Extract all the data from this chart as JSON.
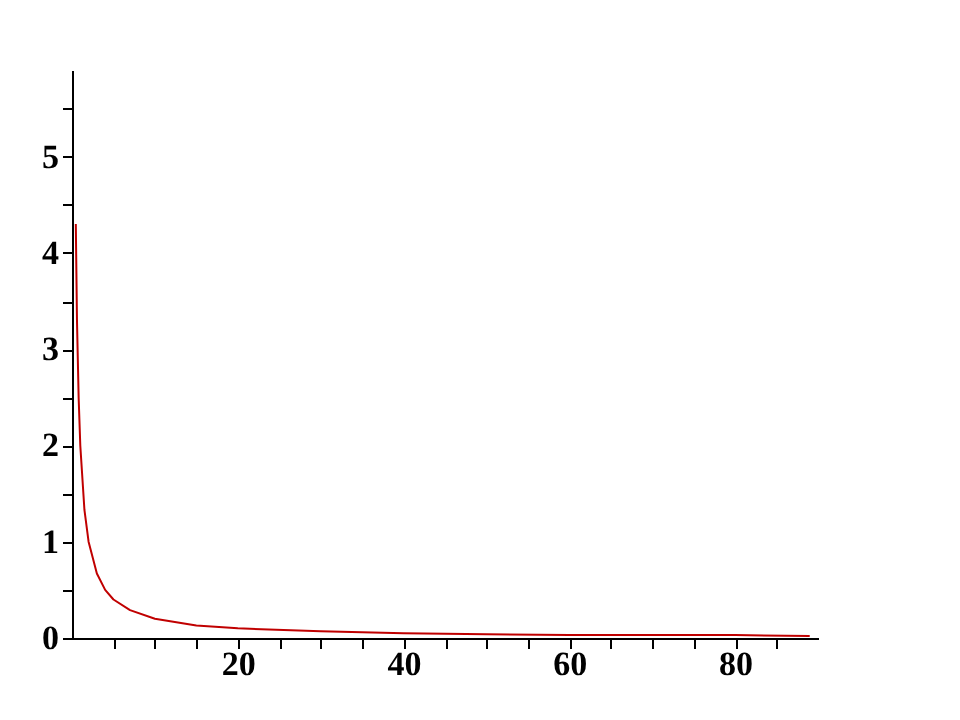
{
  "chart_data": {
    "type": "line",
    "x": [
      0.46,
      0.6,
      0.8,
      1,
      1.5,
      2,
      3,
      4,
      5,
      7,
      10,
      15,
      20,
      30,
      40,
      50,
      60,
      70,
      80,
      89
    ],
    "series": [
      {
        "color": "#c00000",
        "values": [
          4.3,
          3.3,
          2.5,
          2.0,
          1.33,
          1.0,
          0.67,
          0.5,
          0.4,
          0.29,
          0.2,
          0.13,
          0.1,
          0.07,
          0.05,
          0.04,
          0.03,
          0.03,
          0.03,
          0.02
        ]
      }
    ],
    "xlim": [
      0,
      90
    ],
    "ylim": [
      0,
      5.9
    ],
    "xticks": [
      {
        "value": 5,
        "label": null
      },
      {
        "value": 10,
        "label": null
      },
      {
        "value": 15,
        "label": null
      },
      20,
      {
        "value": 25,
        "label": null
      },
      {
        "value": 30,
        "label": null
      },
      {
        "value": 35,
        "label": null
      },
      40,
      {
        "value": 45,
        "label": null
      },
      {
        "value": 50,
        "label": null
      },
      {
        "value": 55,
        "label": null
      },
      60,
      {
        "value": 65,
        "label": null
      },
      {
        "value": 70,
        "label": null
      },
      {
        "value": 75,
        "label": null
      },
      80,
      {
        "value": 85,
        "label": null
      }
    ],
    "yticks": [
      0,
      {
        "value": 0.5,
        "label": null
      },
      1,
      {
        "value": 1.5,
        "label": null
      },
      2,
      {
        "value": 2.5,
        "label": null
      },
      3,
      {
        "value": 3.5,
        "label": null
      },
      4,
      {
        "value": 4.5,
        "label": null
      },
      5,
      {
        "value": 5.5,
        "label": null
      }
    ],
    "grid": false,
    "marker": "none",
    "line_style": "solid"
  }
}
